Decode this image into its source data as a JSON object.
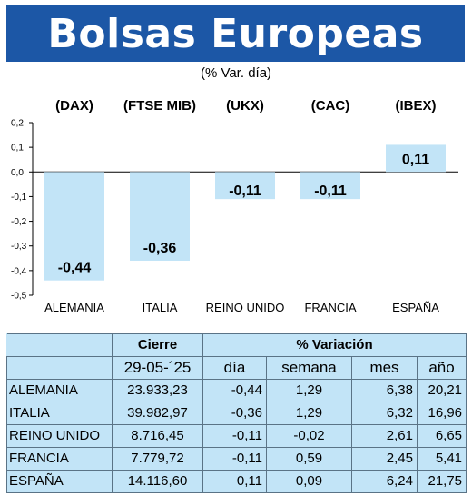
{
  "header": {
    "title": "Bolsas Europeas",
    "subtitle": "(% Var. día)"
  },
  "chart_data": {
    "type": "bar",
    "title": "Bolsas Europeas",
    "subtitle": "(% Var. día)",
    "indices": [
      "(DAX)",
      "(FTSE MIB)",
      "(UKX)",
      "(CAC)",
      "(IBEX)"
    ],
    "categories": [
      "ALEMANIA",
      "ITALIA",
      "REINO UNIDO",
      "FRANCIA",
      "ESPAÑA"
    ],
    "values": [
      -0.44,
      -0.36,
      -0.11,
      -0.11,
      0.11
    ],
    "value_labels": [
      "-0,44",
      "-0,36",
      "-0,11",
      "-0,11",
      "0,11"
    ],
    "ylim": [
      -0.5,
      0.2
    ],
    "yticks": [
      0.2,
      0.1,
      0.0,
      -0.1,
      -0.2,
      -0.3,
      -0.4,
      -0.5
    ],
    "ytick_labels": [
      "0,2",
      "0,1",
      "0,0",
      "-0,1",
      "-0,2",
      "-0,3",
      "-0,4",
      "-0,5"
    ],
    "bar_color": "#c2e4f7",
    "grid": false
  },
  "table": {
    "header_cierre": "Cierre",
    "header_variacion": "% Variación",
    "date": "29-05-´25",
    "columns": [
      "día",
      "semana",
      "mes",
      "año"
    ],
    "rows": [
      {
        "name": "ALEMANIA",
        "cierre": "23.933,23",
        "dia": "-0,44",
        "semana": "1,29",
        "mes": "6,38",
        "anio": "20,21"
      },
      {
        "name": "ITALIA",
        "cierre": "39.982,97",
        "dia": "-0,36",
        "semana": "1,29",
        "mes": "6,32",
        "anio": "16,96"
      },
      {
        "name": "REINO UNIDO",
        "cierre": "8.716,45",
        "dia": "-0,11",
        "semana": "-0,02",
        "mes": "2,61",
        "anio": "6,65"
      },
      {
        "name": "FRANCIA",
        "cierre": "7.779,72",
        "dia": "-0,11",
        "semana": "0,59",
        "mes": "2,45",
        "anio": "5,41"
      },
      {
        "name": "ESPAÑA",
        "cierre": "14.116,60",
        "dia": "0,11",
        "semana": "0,09",
        "mes": "6,24",
        "anio": "21,75"
      }
    ]
  }
}
